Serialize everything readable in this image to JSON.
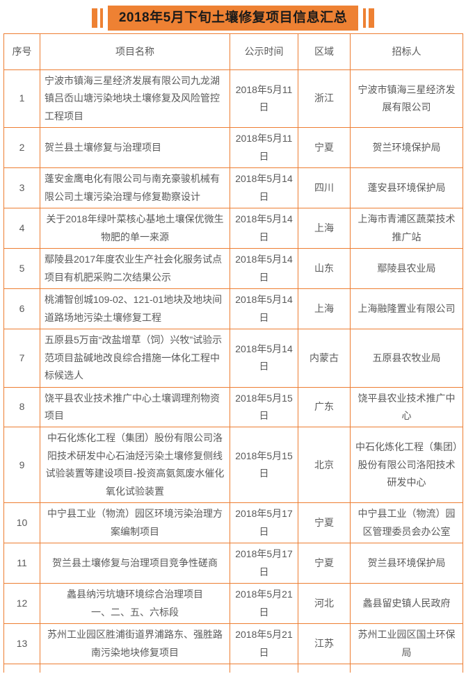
{
  "title": "2018年5月下旬土壤修复项目信息汇总",
  "colors": {
    "accent_orange": "#EE8133",
    "table_border_orange": "#ED7D31",
    "title_text": "#1A1A1A",
    "body_text": "#595959"
  },
  "table": {
    "headers": [
      "序号",
      "项目名称",
      "公示时间",
      "区域",
      "招标人"
    ],
    "rows": [
      {
        "no": "1",
        "project": "宁波市镇海三星经济发展有限公司九龙湖镇吕岙山塘污染地块土壤修复及风险管控工程项目",
        "date": "2018年5月11日",
        "region": "浙江",
        "bidder": "宁波市镇海三星经济发展有限公司",
        "align": "left"
      },
      {
        "no": "2",
        "project": "贺兰县土壤修复与治理项目",
        "date": "2018年5月11日",
        "region": "宁夏",
        "bidder": "贺兰环境保护局",
        "align": "left"
      },
      {
        "no": "3",
        "project": "蓬安金鹰电化有限公司与南充豪骏机械有限公司土壤污染治理与修复勘察设计",
        "date": "2018年5月14日",
        "region": "四川",
        "bidder": "蓬安县环境保护局",
        "align": "left"
      },
      {
        "no": "4",
        "project": "关于2018年绿叶菜核心基地土壤保优微生物肥的单一来源",
        "date": "2018年5月14日",
        "region": "上海",
        "bidder": "上海市青浦区蔬菜技术推广站",
        "align": "center"
      },
      {
        "no": "5",
        "project": "鄢陵县2017年度农业生产社会化服务试点项目有机肥采购二次结果公示",
        "date": "2018年5月14日",
        "region": "山东",
        "bidder": "鄢陵县农业局",
        "align": "left"
      },
      {
        "no": "6",
        "project": "桃浦智创城109-02、121-01地块及地块间道路场地污染土壤修复工程",
        "date": "2018年5月14日",
        "region": "上海",
        "bidder": "上海融隆置业有限公司",
        "align": "left"
      },
      {
        "no": "7",
        "project": "五原县5万亩“改盐增草（饲）兴牧”试验示范项目盐碱地改良综合措施一体化工程中标候选人",
        "date": "2018年5月14日",
        "region": "内蒙古",
        "bidder": "五原县农牧业局",
        "align": "left"
      },
      {
        "no": "8",
        "project": "饶平县农业技术推广中心土壤调理剂物资项目",
        "date": "2018年5月15日",
        "region": "广东",
        "bidder": "饶平县农业技术推广中心",
        "align": "left"
      },
      {
        "no": "9",
        "project": "中石化炼化工程（集团）股份有限公司洛阳技术研发中心石油烃污染土壤修复侧线试验装置等建设项目-投资高氨氮废水催化氧化试验装置",
        "date": "2018年5月15日",
        "region": "北京",
        "bidder": "中石化炼化工程（集团）股份有限公司洛阳技术研发中心",
        "align": "center"
      },
      {
        "no": "10",
        "project": "中宁县工业（物流）园区环境污染治理方案编制项目",
        "date": "2018年5月17日",
        "region": "宁夏",
        "bidder": "中宁县工业（物流）园区管理委员会办公室",
        "align": "center"
      },
      {
        "no": "11",
        "project": "贺兰县土壤修复与治理项目竞争性磋商",
        "date": "2018年5月17日",
        "region": "宁夏",
        "bidder": "贺兰县环境保护局",
        "align": "center"
      },
      {
        "no": "12",
        "project": "蠡县纳污坑塘环境综合治理项目\n一、二、五、六标段",
        "date": "2018年5月21日",
        "region": "河北",
        "bidder": "蠡县留史镇人民政府",
        "align": "center"
      },
      {
        "no": "13",
        "project": "苏州工业园区胜浦街道界浦路东、强胜路南污染地块修复项目",
        "date": "2018年5月21日",
        "region": "江苏",
        "bidder": "苏州工业园区国土环保局",
        "align": "center"
      }
    ]
  }
}
